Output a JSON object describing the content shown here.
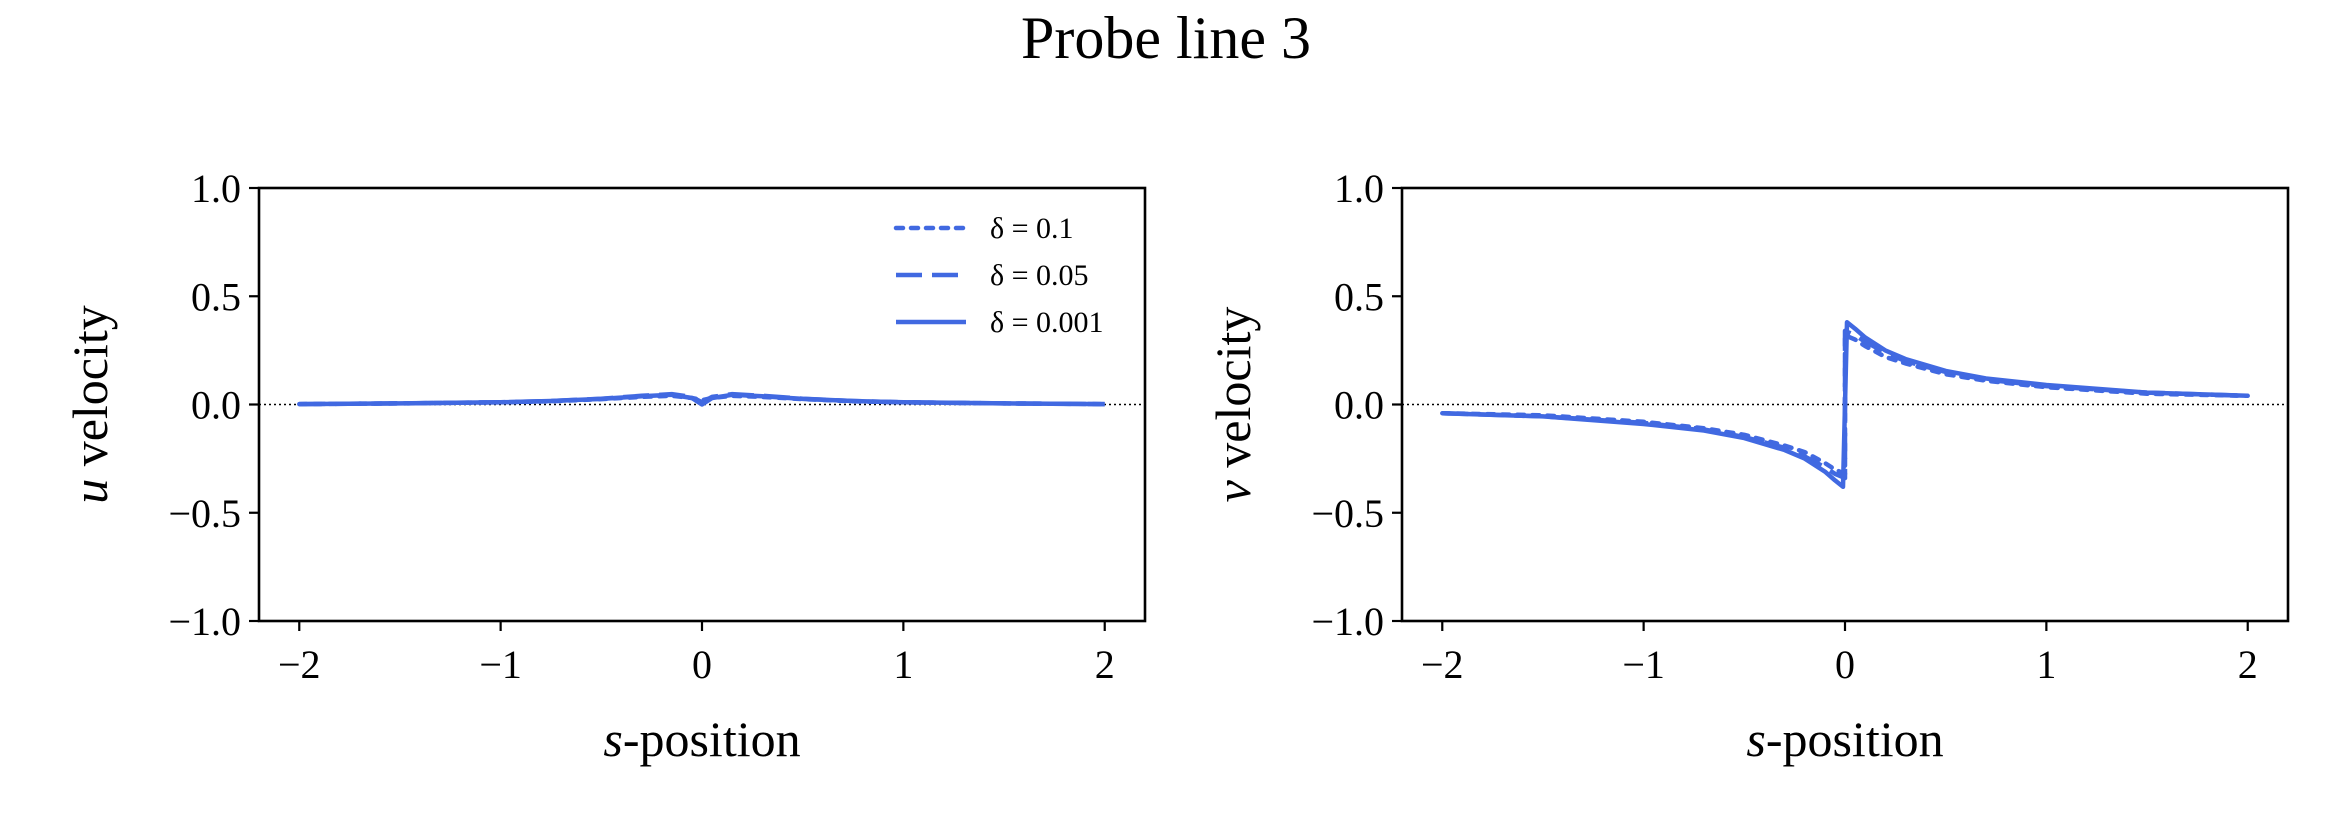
{
  "figure": {
    "title": "Probe line 3"
  },
  "colors": {
    "line": "#4169e1",
    "axis": "#000000",
    "zero_line": "#000000"
  },
  "legend": {
    "location": "top-right",
    "entries": [
      {
        "label": "δ = 0.1",
        "style": "dotted"
      },
      {
        "label": "δ = 0.05",
        "style": "dashed"
      },
      {
        "label": "δ = 0.001",
        "style": "solid"
      }
    ]
  },
  "chart_data": [
    {
      "type": "line",
      "panel": "left",
      "title": "",
      "xlabel_var": "s",
      "xlabel_rest": "-position",
      "ylabel_var": "u",
      "ylabel_rest": " velocity",
      "xlim": [
        -2.2,
        2.2
      ],
      "ylim": [
        -1.0,
        1.0
      ],
      "xticks": [
        -2,
        -1,
        0,
        1,
        2
      ],
      "xtick_labels": [
        "−2",
        "−1",
        "0",
        "1",
        "2"
      ],
      "yticks": [
        -1.0,
        -0.5,
        0.0,
        0.5,
        1.0
      ],
      "ytick_labels": [
        "−1.0",
        "−0.5",
        "0.0",
        "0.5",
        "1.0"
      ],
      "grid": false,
      "zero_line": true,
      "has_legend": true,
      "series": [
        {
          "name": "δ = 0.1",
          "style": "dotted",
          "x": [
            -2.0,
            -1.5,
            -1.0,
            -0.75,
            -0.5,
            -0.3,
            -0.15,
            -0.05,
            0.0,
            0.05,
            0.15,
            0.3,
            0.5,
            0.75,
            1.0,
            1.5,
            2.0
          ],
          "y": [
            0.002,
            0.005,
            0.01,
            0.015,
            0.025,
            0.035,
            0.04,
            0.03,
            0.02,
            0.03,
            0.04,
            0.035,
            0.025,
            0.015,
            0.01,
            0.005,
            0.002
          ]
        },
        {
          "name": "δ = 0.05",
          "style": "dashed",
          "x": [
            -2.0,
            -1.5,
            -1.0,
            -0.75,
            -0.5,
            -0.3,
            -0.15,
            -0.05,
            0.0,
            0.05,
            0.15,
            0.3,
            0.5,
            0.75,
            1.0,
            1.5,
            2.0
          ],
          "y": [
            0.002,
            0.005,
            0.01,
            0.016,
            0.027,
            0.04,
            0.048,
            0.035,
            0.01,
            0.035,
            0.048,
            0.04,
            0.027,
            0.016,
            0.01,
            0.005,
            0.002
          ]
        },
        {
          "name": "δ = 0.001",
          "style": "solid",
          "x": [
            -2.0,
            -1.5,
            -1.0,
            -0.75,
            -0.5,
            -0.3,
            -0.15,
            -0.05,
            0.0,
            0.05,
            0.15,
            0.3,
            0.5,
            0.75,
            1.0,
            1.5,
            2.0
          ],
          "y": [
            0.002,
            0.005,
            0.01,
            0.016,
            0.026,
            0.038,
            0.045,
            0.03,
            0.0,
            0.03,
            0.045,
            0.038,
            0.026,
            0.016,
            0.01,
            0.005,
            0.002
          ]
        }
      ]
    },
    {
      "type": "line",
      "panel": "right",
      "title": "",
      "xlabel_var": "s",
      "xlabel_rest": "-position",
      "ylabel_var": "v",
      "ylabel_rest": " velocity",
      "xlim": [
        -2.2,
        2.2
      ],
      "ylim": [
        -1.0,
        1.0
      ],
      "xticks": [
        -2,
        -1,
        0,
        1,
        2
      ],
      "xtick_labels": [
        "−2",
        "−1",
        "0",
        "1",
        "2"
      ],
      "yticks": [
        -1.0,
        -0.5,
        0.0,
        0.5,
        1.0
      ],
      "ytick_labels": [
        "−1.0",
        "−0.5",
        "0.0",
        "0.5",
        "1.0"
      ],
      "grid": false,
      "zero_line": true,
      "has_legend": false,
      "series": [
        {
          "name": "δ = 0.1",
          "style": "dotted",
          "x": [
            -2.0,
            -1.5,
            -1.0,
            -0.7,
            -0.5,
            -0.3,
            -0.2,
            -0.1,
            -0.05,
            0.0,
            0.0,
            0.05,
            0.1,
            0.2,
            0.3,
            0.5,
            0.7,
            1.0,
            1.5,
            2.0
          ],
          "y": [
            -0.04,
            -0.05,
            -0.08,
            -0.11,
            -0.14,
            -0.19,
            -0.22,
            -0.27,
            -0.3,
            -0.32,
            0.32,
            0.3,
            0.27,
            0.22,
            0.19,
            0.14,
            0.11,
            0.08,
            0.05,
            0.04
          ]
        },
        {
          "name": "δ = 0.05",
          "style": "dashed",
          "x": [
            -2.0,
            -1.5,
            -1.0,
            -0.7,
            -0.5,
            -0.3,
            -0.2,
            -0.1,
            -0.05,
            0.0,
            0.0,
            0.05,
            0.1,
            0.2,
            0.3,
            0.5,
            0.7,
            1.0,
            1.5,
            2.0
          ],
          "y": [
            -0.04,
            -0.055,
            -0.085,
            -0.115,
            -0.15,
            -0.2,
            -0.24,
            -0.29,
            -0.32,
            -0.34,
            0.34,
            0.32,
            0.29,
            0.24,
            0.2,
            0.15,
            0.115,
            0.085,
            0.055,
            0.04
          ]
        },
        {
          "name": "δ = 0.001",
          "style": "solid",
          "x": [
            -2.0,
            -1.5,
            -1.0,
            -0.7,
            -0.5,
            -0.3,
            -0.2,
            -0.1,
            -0.05,
            -0.01,
            0.01,
            0.05,
            0.1,
            0.2,
            0.3,
            0.5,
            0.7,
            1.0,
            1.5,
            2.0
          ],
          "y": [
            -0.04,
            -0.055,
            -0.09,
            -0.12,
            -0.155,
            -0.21,
            -0.25,
            -0.31,
            -0.35,
            -0.38,
            0.38,
            0.35,
            0.31,
            0.25,
            0.21,
            0.155,
            0.12,
            0.09,
            0.055,
            0.04
          ]
        }
      ]
    }
  ]
}
